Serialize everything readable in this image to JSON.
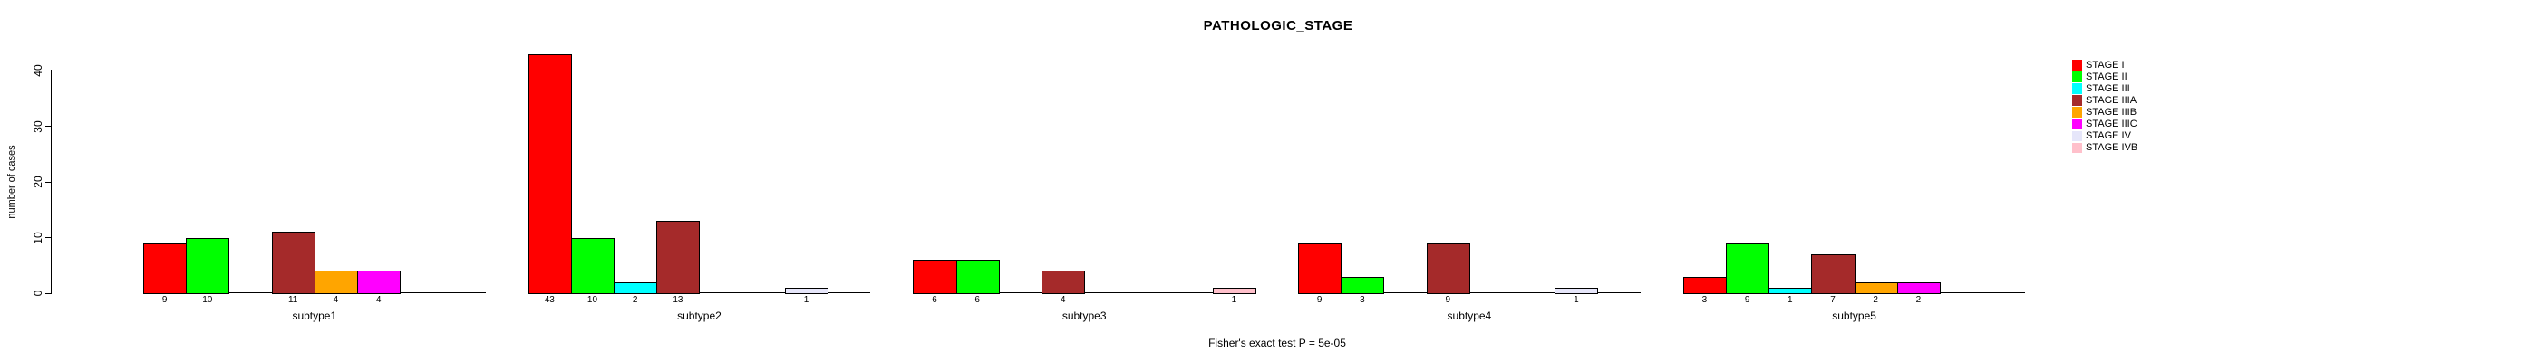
{
  "chart_data": {
    "type": "bar",
    "title": "PATHOLOGIC_STAGE",
    "ylabel": "number of cases",
    "xlabel": "",
    "footnote": "Fisher's exact test P = 5e-05",
    "yticks": [
      0,
      10,
      20,
      30,
      40
    ],
    "ylim": [
      0,
      43
    ],
    "grid": false,
    "legend_position": "right",
    "bar_value_labels_shown": true,
    "zero_values_hidden": true,
    "categories": [
      "subtype1",
      "subtype2",
      "subtype3",
      "subtype4",
      "subtype5"
    ],
    "series": [
      {
        "name": "STAGE I",
        "color": "#FF0000",
        "values": [
          9,
          43,
          6,
          9,
          3
        ]
      },
      {
        "name": "STAGE II",
        "color": "#00FF00",
        "values": [
          10,
          10,
          6,
          3,
          9
        ]
      },
      {
        "name": "STAGE III",
        "color": "#00FFFF",
        "values": [
          0,
          2,
          0,
          0,
          1
        ]
      },
      {
        "name": "STAGE IIIA",
        "color": "#A52A2A",
        "values": [
          11,
          13,
          4,
          9,
          7
        ]
      },
      {
        "name": "STAGE IIIB",
        "color": "#FFA500",
        "values": [
          4,
          0,
          0,
          0,
          2
        ]
      },
      {
        "name": "STAGE IIIC",
        "color": "#FF00FF",
        "values": [
          4,
          0,
          0,
          0,
          2
        ]
      },
      {
        "name": "STAGE IV",
        "color": "#E6E6FA",
        "values": [
          0,
          1,
          0,
          1,
          0
        ]
      },
      {
        "name": "STAGE IVB",
        "color": "#FFC0CB",
        "values": [
          0,
          0,
          1,
          0,
          0
        ]
      }
    ]
  }
}
